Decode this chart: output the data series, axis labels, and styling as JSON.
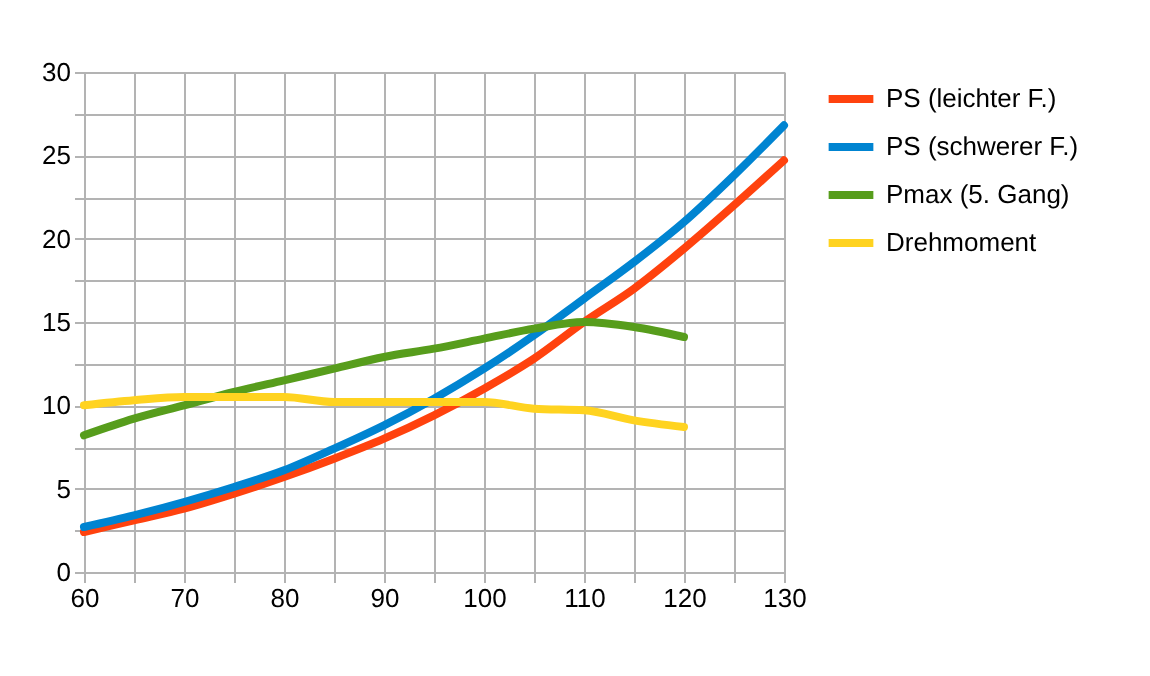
{
  "chart_data": {
    "type": "line",
    "x": [
      60,
      65,
      70,
      75,
      80,
      85,
      90,
      95,
      100,
      105,
      110,
      115,
      120,
      125,
      130
    ],
    "series": [
      {
        "name": "PS (leichter F.)",
        "color": "#ff420e",
        "values": [
          2.4,
          3.1,
          3.8,
          4.7,
          5.7,
          6.8,
          8.0,
          9.4,
          11.0,
          12.8,
          15.0,
          17.0,
          19.4,
          22.0,
          24.7
        ]
      },
      {
        "name": "PS (schwerer F.)",
        "color": "#0084d1",
        "values": [
          2.7,
          3.4,
          4.2,
          5.1,
          6.1,
          7.4,
          8.8,
          10.4,
          12.2,
          14.2,
          16.4,
          18.6,
          21.0,
          23.8,
          26.8
        ]
      },
      {
        "name": "Pmax (5. Gang)",
        "color": "#579d1c",
        "values": [
          8.2,
          9.2,
          10.0,
          10.8,
          11.5,
          12.2,
          12.9,
          13.4,
          14.0,
          14.6,
          15.0,
          14.7,
          14.1,
          null,
          null
        ]
      },
      {
        "name": "Drehmoment",
        "color": "#ffd320",
        "values": [
          10.0,
          10.3,
          10.5,
          10.5,
          10.5,
          10.2,
          10.2,
          10.2,
          10.2,
          9.8,
          9.7,
          9.1,
          8.7,
          null,
          null
        ]
      }
    ],
    "xlim": [
      60,
      130
    ],
    "ylim": [
      0,
      30
    ],
    "xticks": [
      60,
      {
        "value": 65,
        "label": null
      },
      70,
      {
        "value": 75,
        "label": null
      },
      80,
      {
        "value": 85,
        "label": null
      },
      90,
      {
        "value": 95,
        "label": null
      },
      100,
      {
        "value": 105,
        "label": null
      },
      110,
      {
        "value": 115,
        "label": null
      },
      120,
      {
        "value": 125,
        "label": null
      },
      130
    ],
    "yticks": [
      0,
      {
        "value": 2.5,
        "label": null
      },
      5,
      {
        "value": 7.5,
        "label": null
      },
      10,
      {
        "value": 12.5,
        "label": null
      },
      15,
      {
        "value": 17.5,
        "label": null
      },
      20,
      {
        "value": 22.5,
        "label": null
      },
      25,
      {
        "value": 27.5,
        "label": null
      },
      30
    ],
    "grid": true,
    "legend": "right",
    "marker": "none",
    "line_style": "solid"
  }
}
